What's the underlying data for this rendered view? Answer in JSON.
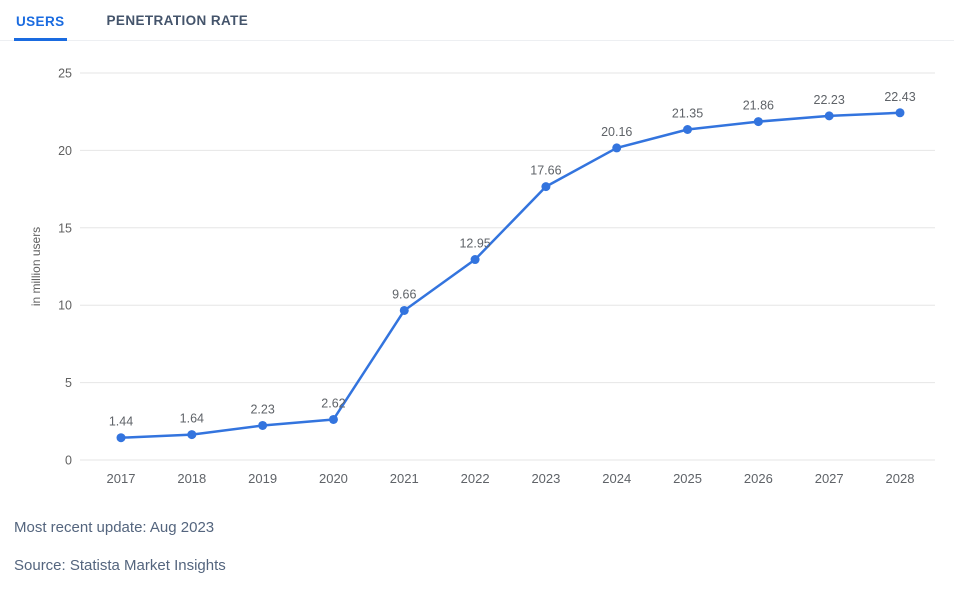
{
  "tabs": {
    "users": {
      "label": "USERS",
      "active": true
    },
    "penetration": {
      "label": "PENETRATION RATE",
      "active": false
    }
  },
  "chart_data": {
    "type": "line",
    "categories": [
      "2017",
      "2018",
      "2019",
      "2020",
      "2021",
      "2022",
      "2023",
      "2024",
      "2025",
      "2026",
      "2027",
      "2028"
    ],
    "values": [
      1.44,
      1.64,
      2.23,
      2.62,
      9.66,
      12.95,
      17.66,
      20.16,
      21.35,
      21.86,
      22.23,
      22.43
    ],
    "title": "",
    "xlabel": "",
    "ylabel": "in million users",
    "ylim": [
      0,
      25
    ],
    "yticks": [
      0,
      5,
      10,
      15,
      20,
      25
    ],
    "grid": true,
    "legend": "none",
    "data_labels": true,
    "line_color": "#3374de",
    "marker_color": "#3374de"
  },
  "footer": {
    "update_note": "Most recent update: Aug 2023",
    "source_note": "Source: Statista Market Insights"
  },
  "colors": {
    "accent_blue": "#1a6be0",
    "inactive_tab_text": "#44546b",
    "axis_text": "#616161",
    "label_text": "#5f6368",
    "grid_line": "#e6e6e6",
    "footer_text": "#54657e",
    "background": "#ffffff"
  }
}
